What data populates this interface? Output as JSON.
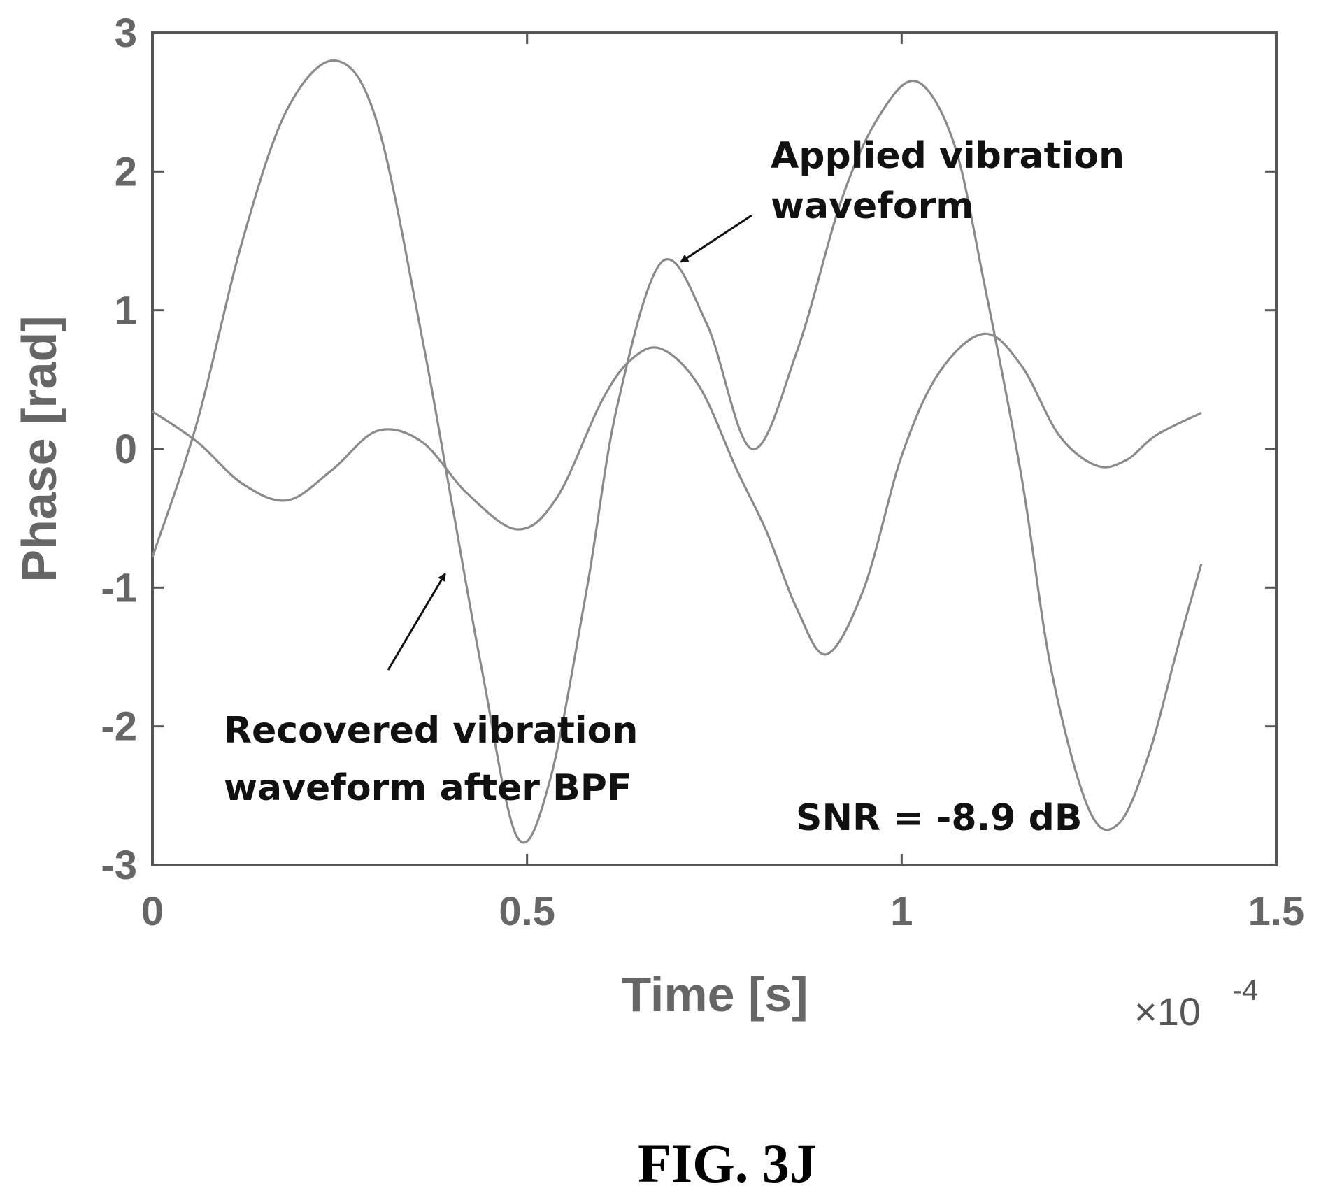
{
  "figure_caption": "FIG. 3J",
  "chart_data": {
    "type": "line",
    "xlabel": "Time [s]",
    "ylabel": "Phase [rad]",
    "x_multiplier": "×10",
    "x_multiplier_exp": "-4",
    "xlim": [
      0,
      1.5
    ],
    "ylim": [
      -3,
      3
    ],
    "xticks": [
      "0",
      "0.5",
      "1",
      "1.5"
    ],
    "yticks": [
      "3",
      "2",
      "1",
      "0",
      "-1",
      "-2",
      "-3"
    ],
    "xtick_values": [
      0,
      0.5,
      1,
      1.5
    ],
    "ytick_values": [
      3,
      2,
      1,
      0,
      -1,
      -2,
      -3
    ],
    "grid": false,
    "series": [
      {
        "x": [
          0,
          0.06,
          0.12,
          0.18,
          0.245,
          0.3,
          0.36,
          0.4,
          0.44,
          0.487,
          0.53,
          0.58,
          0.62,
          0.68,
          0.74,
          0.8,
          0.86,
          0.92,
          0.97,
          1.02,
          1.07,
          1.11,
          1.16,
          1.2,
          1.25,
          1.29,
          1.33,
          1.37,
          1.4
        ],
        "y": [
          -0.78,
          0.2,
          1.5,
          2.45,
          2.8,
          2.35,
          0.8,
          -0.4,
          -1.6,
          -2.8,
          -2.4,
          -1.0,
          0.3,
          1.35,
          0.9,
          0.0,
          0.7,
          1.8,
          2.4,
          2.65,
          2.2,
          1.2,
          -0.2,
          -1.6,
          -2.6,
          -2.7,
          -2.2,
          -1.4,
          -0.83
        ]
      },
      {
        "x": [
          0,
          0.06,
          0.12,
          0.18,
          0.24,
          0.3,
          0.36,
          0.42,
          0.487,
          0.54,
          0.6,
          0.64,
          0.68,
          0.73,
          0.78,
          0.82,
          0.86,
          0.9,
          0.95,
          1.0,
          1.05,
          1.11,
          1.16,
          1.21,
          1.26,
          1.3,
          1.34,
          1.4
        ],
        "y": [
          0.27,
          0.05,
          -0.25,
          -0.37,
          -0.15,
          0.13,
          0.05,
          -0.32,
          -0.58,
          -0.35,
          0.35,
          0.65,
          0.72,
          0.45,
          -0.15,
          -0.6,
          -1.15,
          -1.48,
          -1.0,
          -0.05,
          0.55,
          0.83,
          0.6,
          0.1,
          -0.12,
          -0.08,
          0.1,
          0.26
        ]
      }
    ],
    "annotations": [
      {
        "lines": [
          "Applied vibration",
          "waveform"
        ],
        "arrow_to": [
          0.7,
          1.35
        ]
      },
      {
        "lines": [
          "Recovered vibration",
          "waveform after BPF"
        ],
        "arrow_to": [
          0.385,
          -0.9
        ]
      }
    ],
    "snr_label": "SNR = -8.9 dB"
  }
}
